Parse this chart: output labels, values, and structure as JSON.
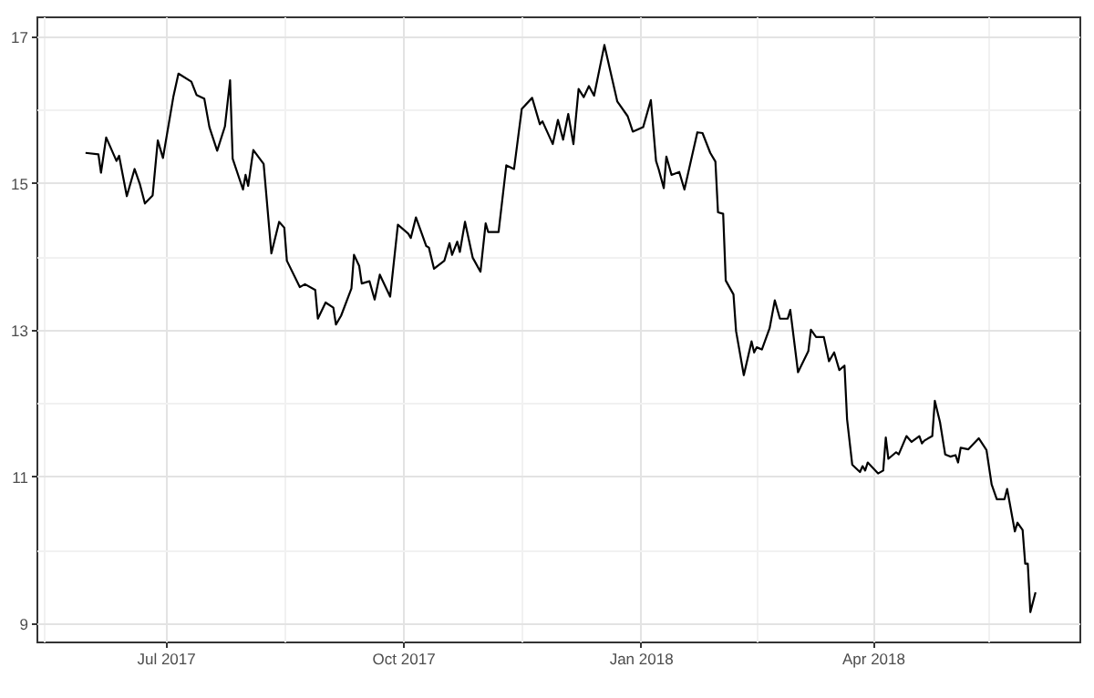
{
  "chart_data": {
    "type": "line",
    "x": [
      "2017-05-31",
      "2017-06-05",
      "2017-06-06",
      "2017-06-08",
      "2017-06-12",
      "2017-06-13",
      "2017-06-16",
      "2017-06-19",
      "2017-06-21",
      "2017-06-23",
      "2017-06-26",
      "2017-06-28",
      "2017-06-30",
      "2017-07-04",
      "2017-07-06",
      "2017-07-11",
      "2017-07-13",
      "2017-07-16",
      "2017-07-18",
      "2017-07-21",
      "2017-07-24",
      "2017-07-26",
      "2017-07-27",
      "2017-07-31",
      "2017-08-01",
      "2017-08-02",
      "2017-08-04",
      "2017-08-08",
      "2017-08-11",
      "2017-08-14",
      "2017-08-16",
      "2017-08-17",
      "2017-08-22",
      "2017-08-24",
      "2017-08-28",
      "2017-08-29",
      "2017-09-01",
      "2017-09-04",
      "2017-09-05",
      "2017-09-07",
      "2017-09-11",
      "2017-09-12",
      "2017-09-14",
      "2017-09-15",
      "2017-09-18",
      "2017-09-20",
      "2017-09-22",
      "2017-09-26",
      "2017-09-29",
      "2017-10-03",
      "2017-10-04",
      "2017-10-06",
      "2017-10-10",
      "2017-10-11",
      "2017-10-13",
      "2017-10-17",
      "2017-10-19",
      "2017-10-20",
      "2017-10-22",
      "2017-10-23",
      "2017-10-25",
      "2017-10-28",
      "2017-10-31",
      "2017-11-02",
      "2017-11-03",
      "2017-11-07",
      "2017-11-10",
      "2017-11-13",
      "2017-11-16",
      "2017-11-20",
      "2017-11-23",
      "2017-11-24",
      "2017-11-28",
      "2017-11-30",
      "2017-12-02",
      "2017-12-04",
      "2017-12-06",
      "2017-12-08",
      "2017-12-10",
      "2017-12-12",
      "2017-12-14",
      "2017-12-18",
      "2017-12-23",
      "2017-12-27",
      "2017-12-29",
      "2018-01-02",
      "2018-01-05",
      "2018-01-07",
      "2018-01-08",
      "2018-01-10",
      "2018-01-11",
      "2018-01-13",
      "2018-01-16",
      "2018-01-18",
      "2018-01-23",
      "2018-01-25",
      "2018-01-28",
      "2018-01-30",
      "2018-01-31",
      "2018-02-02",
      "2018-02-03",
      "2018-02-06",
      "2018-02-07",
      "2018-02-10",
      "2018-02-13",
      "2018-02-14",
      "2018-02-15",
      "2018-02-17",
      "2018-02-20",
      "2018-02-22",
      "2018-02-24",
      "2018-02-27",
      "2018-02-28",
      "2018-03-03",
      "2018-03-07",
      "2018-03-08",
      "2018-03-10",
      "2018-03-13",
      "2018-03-15",
      "2018-03-17",
      "2018-03-19",
      "2018-03-21",
      "2018-03-22",
      "2018-03-24",
      "2018-03-27",
      "2018-03-28",
      "2018-03-29",
      "2018-03-30",
      "2018-04-03",
      "2018-04-05",
      "2018-04-06",
      "2018-04-07",
      "2018-04-10",
      "2018-04-11",
      "2018-04-14",
      "2018-04-16",
      "2018-04-19",
      "2018-04-20",
      "2018-04-21",
      "2018-04-24",
      "2018-04-25",
      "2018-04-27",
      "2018-04-29",
      "2018-05-01",
      "2018-05-03",
      "2018-05-04",
      "2018-05-05",
      "2018-05-08",
      "2018-05-12",
      "2018-05-15",
      "2018-05-17",
      "2018-05-19",
      "2018-05-22",
      "2018-05-23",
      "2018-05-26",
      "2018-05-27",
      "2018-05-29",
      "2018-05-30",
      "2018-05-31",
      "2018-06-01",
      "2018-06-03"
    ],
    "series": [
      {
        "color": "#000000",
        "values": [
          15.41,
          15.39,
          15.14,
          15.62,
          15.3,
          15.37,
          14.82,
          15.19,
          14.99,
          14.72,
          14.83,
          15.58,
          15.34,
          16.17,
          16.49,
          16.38,
          16.2,
          16.15,
          15.76,
          15.44,
          15.77,
          16.4,
          15.33,
          14.91,
          15.11,
          14.96,
          15.45,
          15.26,
          14.04,
          14.47,
          14.39,
          13.94,
          13.58,
          13.62,
          13.54,
          13.15,
          13.37,
          13.3,
          13.07,
          13.19,
          13.56,
          14.02,
          13.87,
          13.63,
          13.66,
          13.41,
          13.75,
          13.45,
          14.43,
          14.31,
          14.25,
          14.53,
          14.14,
          14.12,
          13.83,
          13.94,
          14.18,
          14.02,
          14.2,
          14.06,
          14.47,
          13.98,
          13.79,
          14.45,
          14.33,
          14.33,
          15.24,
          15.19,
          16.01,
          16.16,
          15.8,
          15.84,
          15.53,
          15.86,
          15.59,
          15.94,
          15.53,
          16.28,
          16.17,
          16.32,
          16.19,
          16.88,
          16.11,
          15.91,
          15.7,
          15.76,
          16.13,
          15.3,
          15.19,
          14.93,
          15.36,
          15.11,
          15.15,
          14.91,
          15.69,
          15.68,
          15.41,
          15.29,
          14.6,
          14.58,
          13.67,
          13.48,
          12.98,
          12.38,
          12.84,
          12.69,
          12.76,
          12.73,
          13.02,
          13.4,
          13.15,
          13.15,
          13.27,
          12.42,
          12.71,
          13.0,
          12.9,
          12.9,
          12.57,
          12.69,
          12.45,
          12.51,
          11.78,
          11.16,
          11.06,
          11.14,
          11.08,
          11.19,
          11.04,
          11.08,
          11.53,
          11.24,
          11.33,
          11.3,
          11.55,
          11.47,
          11.55,
          11.45,
          11.49,
          11.55,
          12.03,
          11.74,
          11.3,
          11.27,
          11.29,
          11.19,
          11.39,
          11.37,
          11.52,
          11.36,
          10.89,
          10.69,
          10.69,
          10.83,
          10.25,
          10.37,
          10.27,
          9.81,
          9.81,
          9.15,
          9.42
        ]
      }
    ],
    "xlim": [
      "2017-05-12",
      "2018-06-20"
    ],
    "xticks": [
      {
        "value": "2017-05-15",
        "label": null
      },
      {
        "value": "2017-07-01",
        "label": "Jul 2017"
      },
      {
        "value": "2017-08-16",
        "label": null
      },
      {
        "value": "2017-10-01",
        "label": "Oct 2017"
      },
      {
        "value": "2017-11-16",
        "label": null
      },
      {
        "value": "2018-01-01",
        "label": "Jan 2018"
      },
      {
        "value": "2018-02-15",
        "label": null
      },
      {
        "value": "2018-04-01",
        "label": "Apr 2018"
      },
      {
        "value": "2018-05-16",
        "label": null
      }
    ],
    "ylim": [
      8.75,
      17.27
    ],
    "yticks": [
      9,
      {
        "value": 10,
        "label": null
      },
      11,
      {
        "value": 12,
        "label": null
      },
      13,
      {
        "value": 14,
        "label": null
      },
      15,
      {
        "value": 16,
        "label": null
      },
      17
    ],
    "grid": true,
    "line_style": "solid",
    "marker": "none"
  }
}
